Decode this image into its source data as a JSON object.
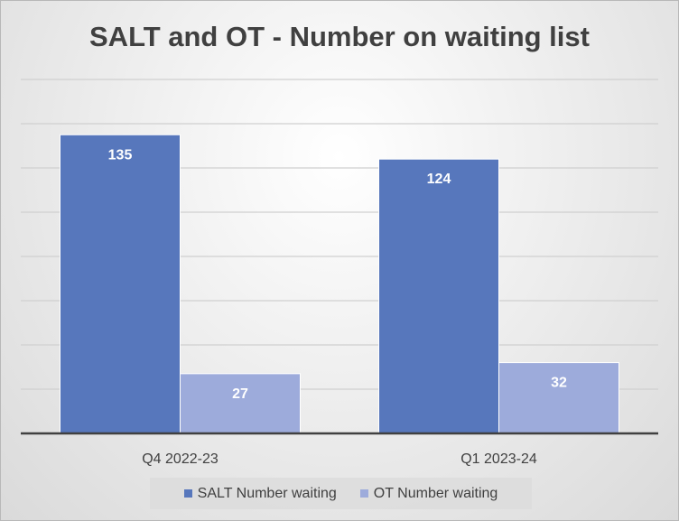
{
  "chart_data": {
    "type": "bar",
    "title": "SALT and OT - Number on waiting list",
    "categories": [
      "Q4 2022-23",
      "Q1 2023-24"
    ],
    "series": [
      {
        "name": "SALT Number waiting",
        "values": [
          135,
          124
        ],
        "color": "#5777bc"
      },
      {
        "name": "OT Number waiting",
        "values": [
          27,
          32
        ],
        "color": "#9dabdb"
      }
    ],
    "ylim": [
      0,
      160
    ],
    "grid": true,
    "legend": "bottom",
    "data_labels": true
  }
}
